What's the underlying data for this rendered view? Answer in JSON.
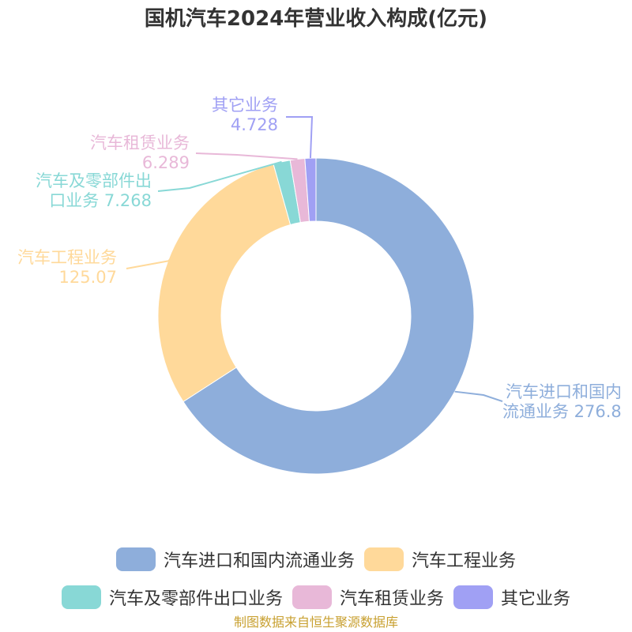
{
  "chart_data": {
    "type": "pie",
    "title": "国机汽车2024年营业收入构成(亿元)",
    "slices": [
      {
        "label": "汽车进口和国内流通业务",
        "value_label": "276.8",
        "value": 276.8,
        "color": "#8eaedb"
      },
      {
        "label": "汽车工程业务",
        "value_label": "125.07",
        "value": 125.07,
        "color": "#ffd99a"
      },
      {
        "label": "汽车及零部件出口业务",
        "value_label": "7.268",
        "value": 7.268,
        "color": "#88d8d6"
      },
      {
        "label": "汽车租赁业务",
        "value_label": "6.289",
        "value": 6.289,
        "color": "#e8b8d8"
      },
      {
        "label": "其它业务",
        "value_label": "4.728",
        "value": 4.728,
        "color": "#a0a0f4"
      }
    ],
    "legend_position": "bottom"
  },
  "slice_labels": {
    "s0_line1": "汽车进口和国内",
    "s0_line2": "流通业务 276.8",
    "s1_line1": "汽车工程业务",
    "s1_line2": "125.07",
    "s2_line1": "汽车及零部件出",
    "s2_line2": "口业务 7.268",
    "s3_line1": "汽车租赁业务",
    "s3_line2": "6.289",
    "s4_line1": "其它业务",
    "s4_line2": "4.728"
  },
  "source_note": "制图数据来自恒生聚源数据库"
}
